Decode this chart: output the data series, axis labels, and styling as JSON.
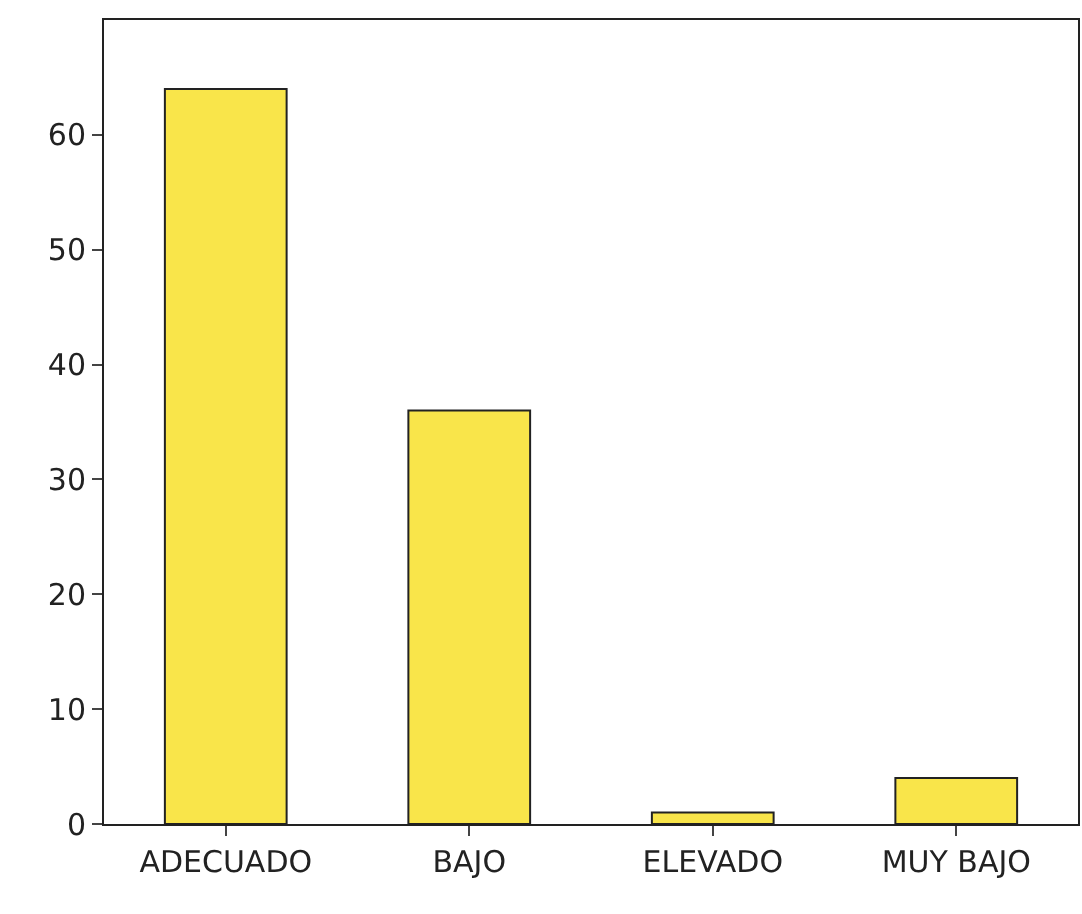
{
  "chart_data": {
    "type": "bar",
    "categories": [
      "ADECUADO",
      "BAJO",
      "ELEVADO",
      "MUY BAJO"
    ],
    "values": [
      64,
      36,
      1,
      4
    ],
    "color": "#f9e54a",
    "ylim": [
      0,
      70
    ],
    "yticks": [
      0,
      10,
      20,
      30,
      40,
      50,
      60
    ],
    "grid": false
  }
}
